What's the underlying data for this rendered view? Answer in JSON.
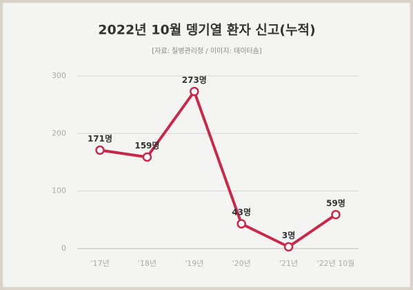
{
  "chart_data": {
    "type": "line",
    "title": "2022년 10월 뎅기열 환자 신고(누적)",
    "subtitle": "[자료: 질병관리청 / 이미지: 데이터솜]",
    "categories": [
      "'17년",
      "'18년",
      "'19년",
      "'20년",
      "'21년",
      "'22년 10월"
    ],
    "values": [
      171,
      159,
      273,
      43,
      3,
      59
    ],
    "value_labels": [
      "171명",
      "159명",
      "273명",
      "43명",
      "3명",
      "59명"
    ],
    "color": "#c8294a",
    "ylim": [
      0,
      300
    ],
    "yticks": [
      0,
      100,
      200,
      300
    ],
    "grid": true
  }
}
